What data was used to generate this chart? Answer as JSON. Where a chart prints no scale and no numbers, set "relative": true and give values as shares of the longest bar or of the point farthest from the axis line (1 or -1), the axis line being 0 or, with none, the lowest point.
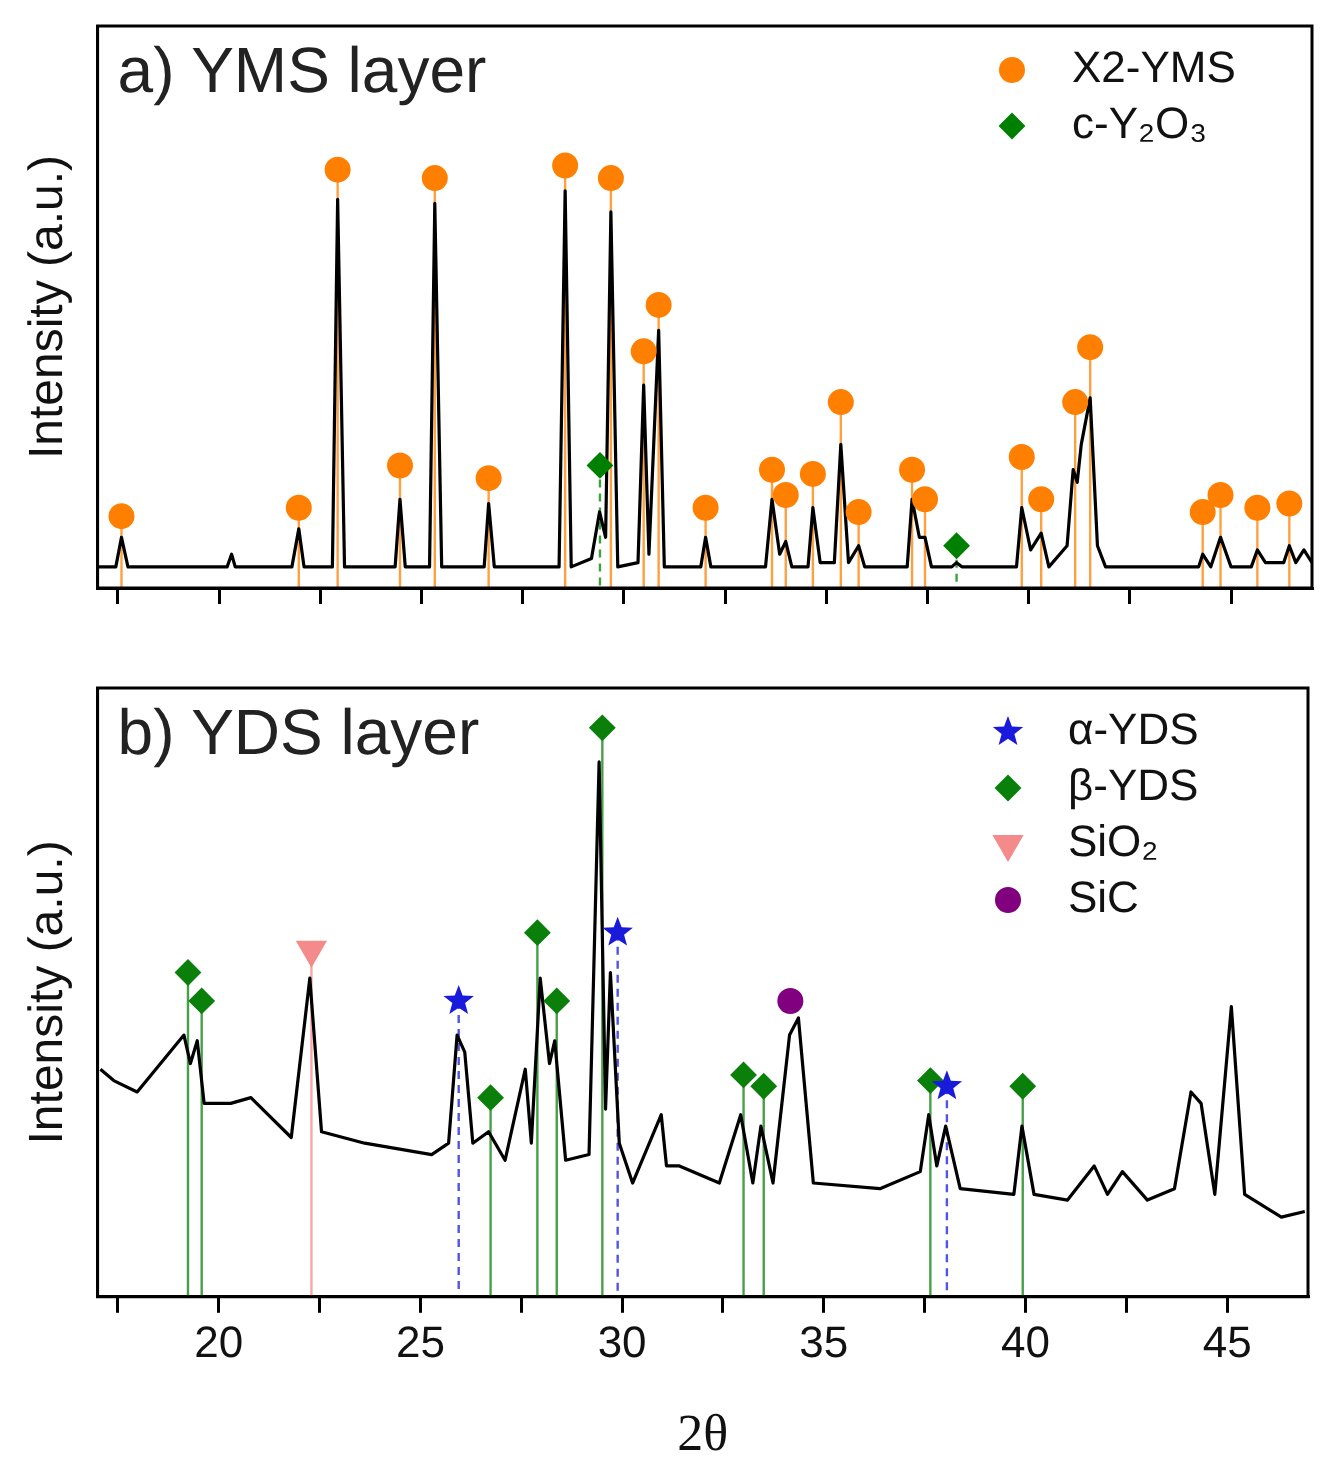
{
  "chart_data": [
    {
      "type": "line",
      "title": "a) YMS layer",
      "ylabel": "Intensity (a.u.)",
      "relative": true,
      "xlim": [
        17,
        47
      ],
      "xticks": [
        {
          "value": 17.5,
          "label": null
        },
        {
          "value": 20,
          "label": null
        },
        {
          "value": 22.5,
          "label": null
        },
        {
          "value": 25,
          "label": null
        },
        {
          "value": 27.5,
          "label": null
        },
        {
          "value": 30,
          "label": null
        },
        {
          "value": 32.5,
          "label": null
        },
        {
          "value": 35,
          "label": null
        },
        {
          "value": 37.5,
          "label": null
        },
        {
          "value": 40,
          "label": null
        },
        {
          "value": 42.5,
          "label": null
        },
        {
          "value": 45,
          "label": null
        }
      ],
      "tick_labels": false,
      "grid": false,
      "legend": "top right",
      "series": [
        {
          "type": "line",
          "color": "#000000",
          "marker": "none",
          "x": [
            17.0,
            17.45,
            17.59,
            17.75,
            20.2,
            20.31,
            20.4,
            21.8,
            21.97,
            22.1,
            22.8,
            22.93,
            23.1,
            24.35,
            24.47,
            24.6,
            25.2,
            25.33,
            25.5,
            26.55,
            26.66,
            26.8,
            28.4,
            28.55,
            28.7,
            29.2,
            29.4,
            29.55,
            29.68,
            29.85,
            30.35,
            30.49,
            30.62,
            30.86,
            31.0,
            31.9,
            32.02,
            32.15,
            33.5,
            33.66,
            33.85,
            34.0,
            34.15,
            34.55,
            34.67,
            34.85,
            35.2,
            35.36,
            35.55,
            35.8,
            35.95,
            37.0,
            37.12,
            37.3,
            37.44,
            37.6,
            38.1,
            38.22,
            38.35,
            39.7,
            39.83,
            40.05,
            40.31,
            40.5,
            40.95,
            41.1,
            41.2,
            41.3,
            41.52,
            41.7,
            41.9,
            44.2,
            44.3,
            44.5,
            44.74,
            45.0,
            45.5,
            45.65,
            45.85,
            46.3,
            46.44,
            46.6,
            46.8,
            47.0
          ],
          "values": [
            0.05,
            0.05,
            0.12,
            0.05,
            0.05,
            0.08,
            0.05,
            0.05,
            0.14,
            0.05,
            0.05,
            0.92,
            0.05,
            0.05,
            0.21,
            0.05,
            0.05,
            0.91,
            0.05,
            0.05,
            0.2,
            0.05,
            0.05,
            0.94,
            0.05,
            0.07,
            0.18,
            0.12,
            0.89,
            0.05,
            0.06,
            0.48,
            0.08,
            0.61,
            0.05,
            0.05,
            0.12,
            0.05,
            0.05,
            0.21,
            0.08,
            0.11,
            0.05,
            0.05,
            0.19,
            0.06,
            0.06,
            0.34,
            0.06,
            0.1,
            0.05,
            0.05,
            0.21,
            0.12,
            0.12,
            0.05,
            0.05,
            0.06,
            0.05,
            0.05,
            0.19,
            0.09,
            0.13,
            0.05,
            0.1,
            0.28,
            0.25,
            0.34,
            0.45,
            0.1,
            0.05,
            0.05,
            0.08,
            0.05,
            0.12,
            0.05,
            0.05,
            0.09,
            0.06,
            0.06,
            0.1,
            0.06,
            0.09,
            0.06
          ]
        },
        {
          "type": "lollipop",
          "name": "X2-YMS",
          "color": "#ff8000",
          "marker": "circle",
          "x": [
            17.59,
            21.97,
            22.93,
            24.47,
            25.33,
            26.66,
            28.55,
            29.68,
            30.49,
            30.86,
            32.02,
            33.66,
            34.0,
            34.67,
            35.36,
            35.8,
            37.12,
            37.44,
            39.83,
            40.31,
            41.15,
            41.52,
            44.3,
            44.74,
            45.65,
            46.44
          ],
          "values": [
            0.17,
            0.19,
            0.99,
            0.29,
            0.97,
            0.26,
            1.0,
            0.97,
            0.56,
            0.67,
            0.19,
            0.28,
            0.22,
            0.27,
            0.44,
            0.18,
            0.28,
            0.21,
            0.31,
            0.21,
            0.44,
            0.57,
            0.18,
            0.22,
            0.19,
            0.2
          ]
        },
        {
          "type": "lollipop",
          "name": "c-Y₂O₃",
          "color": "#008000",
          "marker": "diamond",
          "line_style": "dashed",
          "x": [
            29.41,
            38.22
          ],
          "values": [
            0.29,
            0.1
          ]
        }
      ]
    },
    {
      "type": "line",
      "title": "b) YDS layer",
      "xlabel": "2θ",
      "ylabel": "Intensity (a.u.)",
      "relative": true,
      "xlim": [
        17,
        47
      ],
      "xticks": [
        {
          "value": 17.5,
          "label": null
        },
        20,
        {
          "value": 22.5,
          "label": null
        },
        25,
        {
          "value": 27.5,
          "label": null
        },
        30,
        {
          "value": 32.5,
          "label": null
        },
        35,
        {
          "value": 37.5,
          "label": null
        },
        40,
        {
          "value": 42.5,
          "label": null
        },
        45
      ],
      "tick_labels": "x",
      "grid": false,
      "legend": "top right",
      "series": [
        {
          "type": "line",
          "color": "#000000",
          "marker": "none",
          "x": [
            17.07,
            17.4,
            17.98,
            19.14,
            19.3,
            19.47,
            19.64,
            20.3,
            20.8,
            21.8,
            22.26,
            22.55,
            23.62,
            25.28,
            25.7,
            25.91,
            26.1,
            26.3,
            26.69,
            27.1,
            27.6,
            27.75,
            27.97,
            28.2,
            28.33,
            28.6,
            29.18,
            29.43,
            29.59,
            29.71,
            29.93,
            30.26,
            30.97,
            31.1,
            31.42,
            32.41,
            32.94,
            33.24,
            33.44,
            33.74,
            34.15,
            34.37,
            34.74,
            36.39,
            37.39,
            37.6,
            37.8,
            38.02,
            38.38,
            39.71,
            39.91,
            40.21,
            41.04,
            41.7,
            42.03,
            42.4,
            43.02,
            43.69,
            44.1,
            44.35,
            44.69,
            45.1,
            45.43,
            46.34,
            46.92
          ],
          "values": [
            0.4,
            0.38,
            0.36,
            0.46,
            0.41,
            0.45,
            0.34,
            0.34,
            0.35,
            0.28,
            0.56,
            0.29,
            0.27,
            0.25,
            0.27,
            0.46,
            0.43,
            0.27,
            0.29,
            0.24,
            0.4,
            0.27,
            0.56,
            0.41,
            0.45,
            0.24,
            0.25,
            0.94,
            0.33,
            0.57,
            0.27,
            0.2,
            0.32,
            0.23,
            0.23,
            0.2,
            0.32,
            0.2,
            0.3,
            0.2,
            0.46,
            0.49,
            0.2,
            0.19,
            0.22,
            0.32,
            0.23,
            0.3,
            0.19,
            0.18,
            0.3,
            0.18,
            0.17,
            0.23,
            0.18,
            0.22,
            0.17,
            0.19,
            0.36,
            0.34,
            0.18,
            0.51,
            0.18,
            0.14,
            0.15
          ]
        },
        {
          "type": "lollipop",
          "name": "α-YDS",
          "color": "#1a1adb",
          "marker": "star",
          "line_style": "dashed",
          "x": [
            25.95,
            29.89,
            38.05
          ],
          "values": [
            0.52,
            0.64,
            0.37
          ]
        },
        {
          "type": "lollipop",
          "name": "β-YDS",
          "color": "#0a800a",
          "marker": "diamond",
          "x": [
            19.24,
            19.58,
            26.74,
            27.9,
            28.38,
            29.51,
            33.01,
            33.51,
            37.64,
            39.93
          ],
          "values": [
            0.57,
            0.52,
            0.35,
            0.64,
            0.52,
            1.0,
            0.39,
            0.37,
            0.38,
            0.37
          ]
        },
        {
          "type": "lollipop",
          "name": "SiO₂",
          "color": "#f48a8a",
          "marker": "triangle",
          "x": [
            22.3
          ],
          "values": [
            0.61
          ]
        },
        {
          "type": "scatter",
          "name": "SiC",
          "color": "#800080",
          "marker": "circle",
          "x": [
            34.17
          ],
          "values": [
            0.52
          ]
        }
      ]
    }
  ]
}
